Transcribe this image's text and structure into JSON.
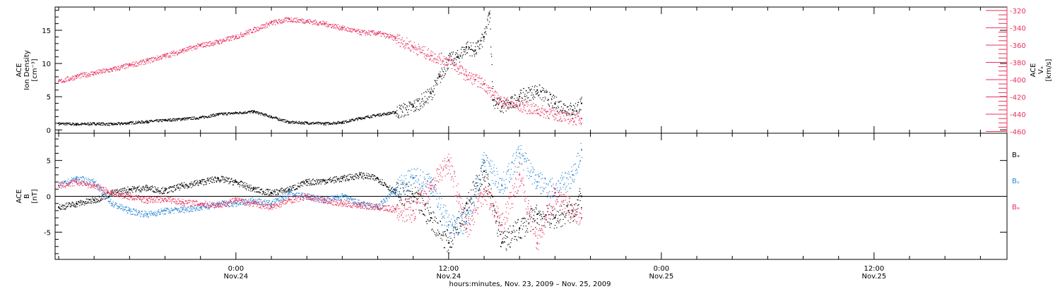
{
  "colors": {
    "black": "#000000",
    "pink": "#e8305e",
    "blue": "#2a87d6",
    "axis": "#000000"
  },
  "x_axis": {
    "ticks": [
      {
        "line1": "0:00",
        "line2": "Nov.24",
        "hour": 24
      },
      {
        "line1": "12:00",
        "line2": "Nov.24",
        "hour": 36
      },
      {
        "line1": "0:00",
        "line2": "Nov.25",
        "hour": 48
      },
      {
        "line1": "12:00",
        "line2": "Nov.25",
        "hour": 60
      }
    ],
    "label": "hours:minutes, Nov. 23, 2009 – Nov. 25, 2009"
  },
  "chart_data": [
    {
      "type": "scatter",
      "panel": "top",
      "ylabel": [
        "ACE",
        "Ion Density",
        "[cm⁻³]"
      ],
      "yticks": [
        0,
        5,
        10,
        15
      ],
      "ylim": [
        -0.5,
        18.5
      ],
      "xlim_hours": [
        13.8,
        67.5
      ],
      "y2label": [
        "ACE",
        "Vₓ",
        "[km/s]"
      ],
      "y2ticks": [
        -320,
        -340,
        -360,
        -380,
        -400,
        -420,
        -440,
        -460
      ],
      "y2lim": [
        -462,
        -316
      ],
      "series": [
        {
          "axis": "left",
          "color": "black",
          "x": [
            14.0,
            15,
            16,
            17,
            18,
            19,
            20,
            21,
            22,
            23,
            24,
            25,
            26,
            27,
            28,
            29,
            30,
            31,
            32,
            33,
            34,
            35,
            35.5,
            36,
            36.5,
            37,
            37.5,
            38,
            38.3,
            38.5,
            39,
            39.5,
            40,
            41,
            42,
            43,
            43.5
          ],
          "y": [
            1.0,
            0.9,
            1.0,
            0.9,
            1.1,
            1.3,
            1.5,
            1.7,
            1.9,
            2.4,
            2.6,
            2.8,
            2.0,
            1.2,
            1.1,
            1.0,
            1.2,
            1.8,
            2.3,
            2.7,
            3.5,
            5.5,
            8.0,
            10.5,
            11.0,
            12.5,
            12.0,
            14.0,
            17.5,
            4.5,
            3.5,
            4.0,
            5.0,
            6.0,
            4.0,
            3.0,
            4.0
          ]
        },
        {
          "axis": "right",
          "color": "pink",
          "x": [
            14.0,
            15,
            16,
            17,
            18,
            19,
            20,
            21,
            22,
            23,
            24,
            25,
            26,
            27,
            28,
            29,
            30,
            31,
            32,
            33,
            34,
            35,
            36,
            37,
            37.5,
            38,
            38.5,
            39,
            40,
            41,
            42,
            43,
            43.5
          ],
          "y": [
            -402,
            -396,
            -392,
            -388,
            -383,
            -378,
            -372,
            -366,
            -360,
            -356,
            -350,
            -342,
            -334,
            -330,
            -332,
            -335,
            -340,
            -345,
            -346,
            -352,
            -362,
            -372,
            -378,
            -395,
            -400,
            -405,
            -418,
            -425,
            -430,
            -435,
            -440,
            -445,
            -445
          ]
        }
      ]
    },
    {
      "type": "scatter",
      "panel": "bottom",
      "ylabel": [
        "ACE",
        "B",
        "[nT]"
      ],
      "yticks": [
        -5,
        0,
        5
      ],
      "ylim": [
        -8.8,
        8.8
      ],
      "xlim_hours": [
        13.8,
        67.5
      ],
      "legend": [
        "Bₓ",
        "Bᵧ",
        "Bₔ"
      ],
      "legend_placement": "right",
      "series": [
        {
          "name": "Bₓ",
          "color": "black",
          "x": [
            14.0,
            15,
            16,
            17,
            18,
            19,
            20,
            21,
            22,
            23,
            24,
            25,
            26,
            27,
            28,
            29,
            30,
            31,
            32,
            33,
            34,
            35,
            36,
            37,
            38,
            39,
            40,
            41,
            42,
            43,
            43.5
          ],
          "y": [
            -1.5,
            -1.0,
            -0.5,
            0.5,
            1.0,
            1.2,
            0.8,
            1.5,
            2.0,
            2.5,
            2.0,
            1.0,
            0.5,
            1.0,
            2.0,
            2.2,
            2.5,
            3.0,
            2.5,
            0.5,
            0.0,
            -3.0,
            -6.5,
            -1.0,
            3.5,
            -6.5,
            -4.5,
            -2.5,
            -3.0,
            -2.0,
            0.0
          ]
        },
        {
          "name": "Bᵧ",
          "color": "blue",
          "x": [
            14.0,
            15,
            16,
            17,
            18,
            19,
            20,
            21,
            22,
            23,
            24,
            25,
            26,
            27,
            28,
            29,
            30,
            31,
            32,
            33,
            34,
            35,
            36,
            37,
            38,
            39,
            40,
            41,
            42,
            43,
            43.5
          ],
          "y": [
            1.5,
            2.5,
            2.0,
            -1.0,
            -2.0,
            -2.5,
            -2.0,
            -1.8,
            -1.5,
            -1.0,
            -1.0,
            -0.5,
            -1.0,
            0.5,
            0.0,
            -0.5,
            0.0,
            -1.0,
            -1.5,
            1.0,
            2.5,
            2.0,
            -4.0,
            -3.5,
            5.0,
            1.5,
            6.0,
            2.0,
            1.0,
            3.0,
            6.5
          ]
        },
        {
          "name": "Bₔ",
          "color": "pink",
          "x": [
            14.0,
            15,
            16,
            17,
            18,
            19,
            20,
            21,
            22,
            23,
            24,
            25,
            26,
            27,
            28,
            29,
            30,
            31,
            32,
            33,
            34,
            35,
            36,
            37,
            38,
            39,
            40,
            41,
            42,
            43,
            43.5
          ],
          "y": [
            1.5,
            2.0,
            1.5,
            0.5,
            0.0,
            -0.5,
            -0.3,
            -0.8,
            -1.0,
            -1.2,
            -0.5,
            -1.0,
            -1.5,
            -0.5,
            0.0,
            -0.5,
            -1.0,
            -1.2,
            -1.5,
            -1.8,
            -2.0,
            1.5,
            5.0,
            -4.5,
            1.0,
            -4.0,
            3.0,
            -6.5,
            0.5,
            -2.0,
            -3.0
          ]
        }
      ]
    }
  ]
}
